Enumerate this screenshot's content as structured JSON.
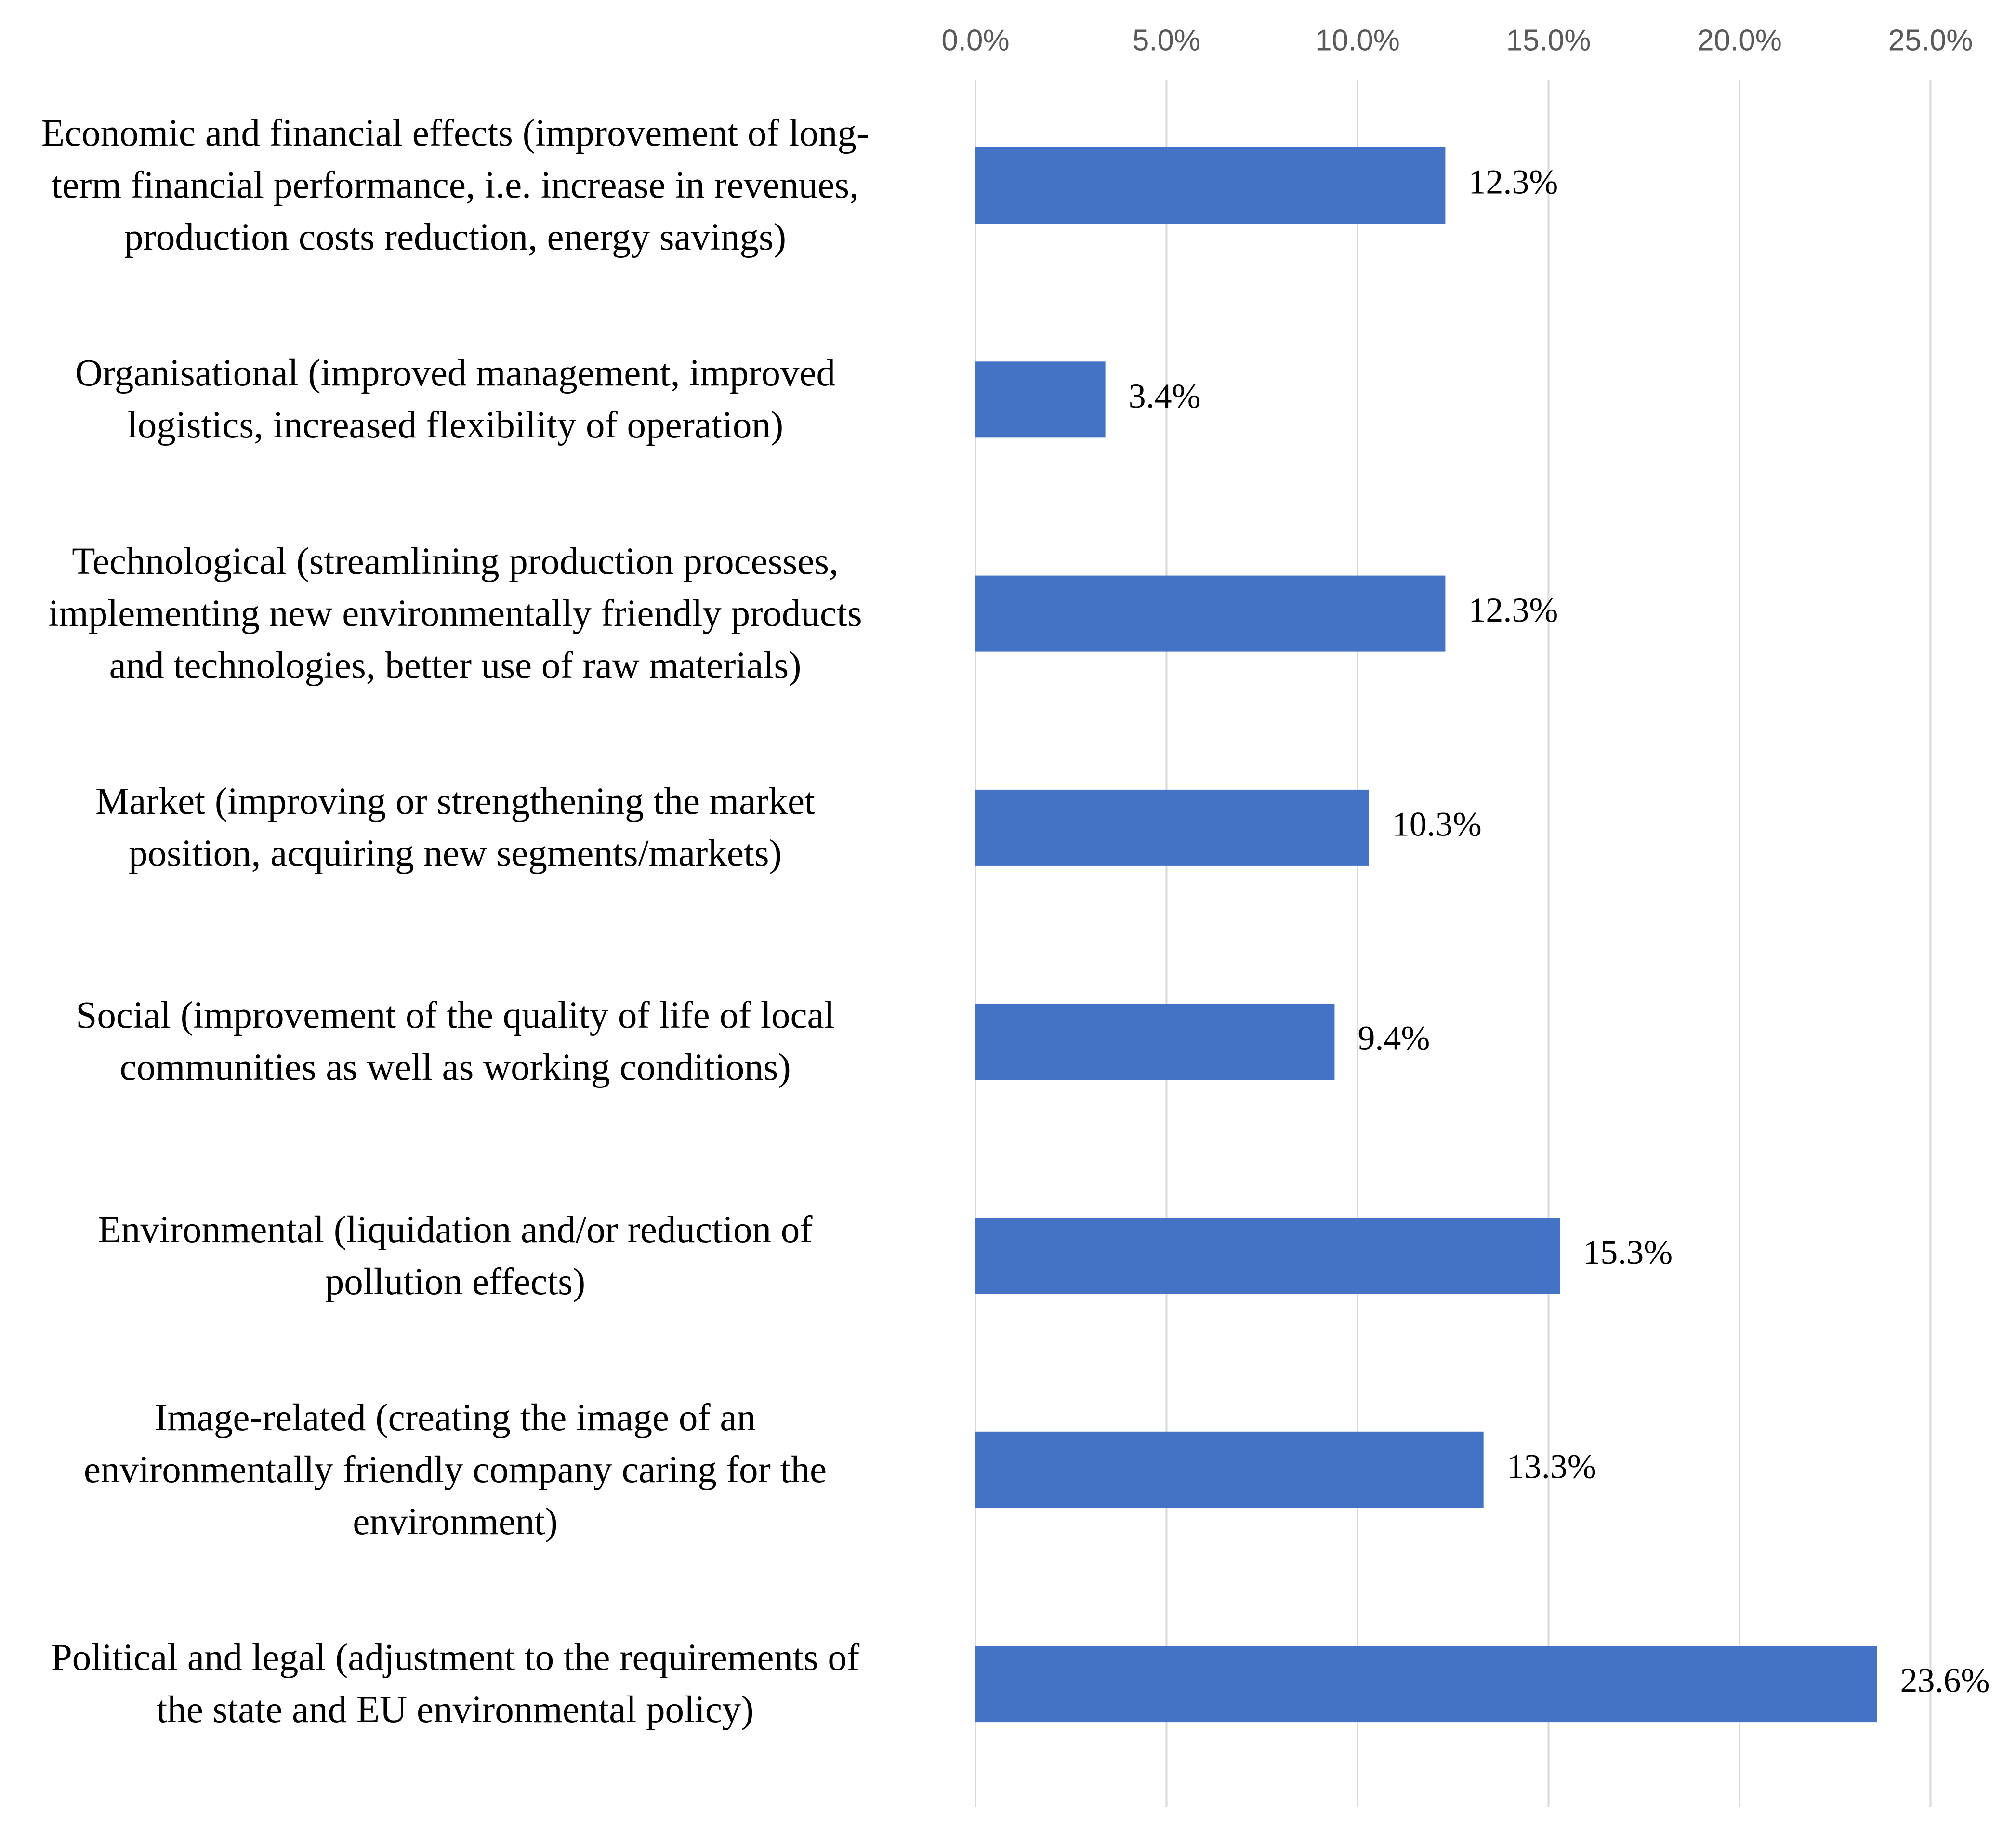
{
  "chart_data": {
    "type": "bar",
    "orientation": "horizontal",
    "title": "",
    "xlabel": "",
    "ylabel": "",
    "xlim": [
      0,
      25
    ],
    "ticks": [
      "0.0%",
      "5.0%",
      "10.0%",
      "15.0%",
      "20.0%",
      "25.0%"
    ],
    "tick_values": [
      0,
      5,
      10,
      15,
      20,
      25
    ],
    "grid": "vertical",
    "axis_position": "top",
    "legend": "none",
    "bar_color": "#4472C4",
    "grid_color": "#D9D9D9",
    "categories": [
      {
        "label": "Economic and financial effects (improvement of long-term financial performance, i.e. increase in revenues, production costs reduction, energy savings)",
        "lines": [
          "Economic and financial effects (improvement of long-",
          "term financial performance, i.e. increase in revenues,",
          "production costs reduction, energy savings)"
        ],
        "value": 12.3,
        "value_label": "12.3%"
      },
      {
        "label": "Organisational (improved management, improved logistics, increased flexibility of operation)",
        "lines": [
          "Organisational (improved management, improved",
          "logistics, increased flexibility of operation)"
        ],
        "value": 3.4,
        "value_label": "3.4%"
      },
      {
        "label": "Technological (streamlining production processes, implementing new environmentally friendly products and technologies, better use of raw materials)",
        "lines": [
          "Technological (streamlining production processes,",
          "implementing new environmentally friendly products",
          "and technologies, better use of raw materials)"
        ],
        "value": 12.3,
        "value_label": "12.3%"
      },
      {
        "label": "Market (improving or strengthening the market position, acquiring new segments/markets)",
        "lines": [
          "Market (improving or strengthening the market",
          "position, acquiring new segments/markets)"
        ],
        "value": 10.3,
        "value_label": "10.3%"
      },
      {
        "label": "Social (improvement of the quality of life of local communities as well as working conditions)",
        "lines": [
          "Social (improvement of the quality of life of local",
          "communities as well as working conditions)"
        ],
        "value": 9.4,
        "value_label": "9.4%"
      },
      {
        "label": "Environmental (liquidation and/or reduction of pollution effects)",
        "lines": [
          "Environmental (liquidation and/or reduction of",
          "pollution effects)"
        ],
        "value": 15.3,
        "value_label": "15.3%"
      },
      {
        "label": "Image-related (creating the image of an environmentally friendly company caring for the environment)",
        "lines": [
          "Image-related (creating the image of an",
          "environmentally friendly company caring for the",
          "environment)"
        ],
        "value": 13.3,
        "value_label": "13.3%"
      },
      {
        "label": "Political and legal (adjustment to the requirements of the state and EU environmental policy)",
        "lines": [
          "Political and legal (adjustment to the requirements of",
          "the state and EU environmental policy)"
        ],
        "value": 23.6,
        "value_label": "23.6%"
      }
    ]
  }
}
